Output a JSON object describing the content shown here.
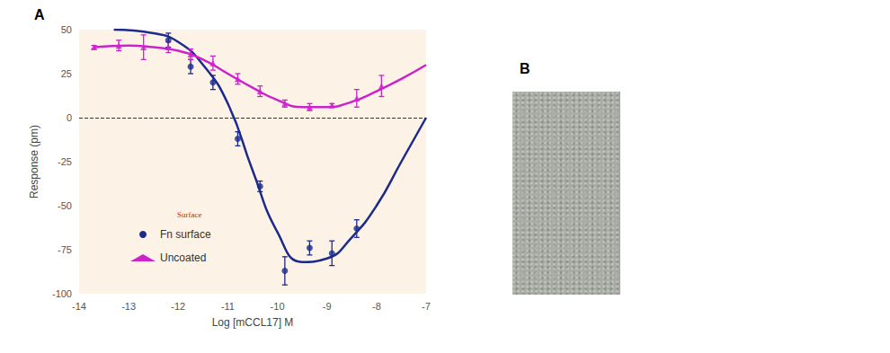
{
  "panel_labels": [
    "A",
    "B"
  ],
  "chart_data": {
    "type": "line",
    "x_label": "Log [mCCL17] M",
    "y_label": "Response (pm)",
    "xlim": [
      -14,
      -7
    ],
    "xticks": [
      -14,
      -13,
      -12,
      -11,
      -10,
      -9,
      -8,
      -7
    ],
    "ylim": [
      -100,
      50
    ],
    "yticks": [
      -100,
      -75,
      -50,
      -25,
      0,
      25,
      50
    ],
    "grid": false,
    "legend": "lower left",
    "hline": 0,
    "annotations": [
      "Surface"
    ],
    "series": [
      {
        "name": "Fn surface",
        "color": "#1c2a8c",
        "marker": "circle",
        "x": [
          -12.2,
          -11.75,
          -11.3,
          -10.8,
          -10.35,
          -9.85,
          -9.35,
          -8.9,
          -8.4
        ],
        "values": [
          44,
          29,
          20,
          -12,
          -39,
          -87,
          -74,
          -77,
          -63
        ],
        "errors": [
          4,
          4,
          4,
          4,
          3,
          8,
          4,
          7,
          5
        ],
        "curve": {
          "x": [
            -13.3,
            -12.5,
            -12,
            -11.5,
            -11,
            -10.5,
            -10,
            -9.5,
            -9,
            -8.5,
            -8,
            -7.5,
            -7
          ],
          "values": [
            50,
            48,
            43,
            30,
            8,
            -30,
            -65,
            -82,
            -80,
            -68,
            -50,
            -25,
            0
          ]
        }
      },
      {
        "name": "Uncoated",
        "color": "#cc22cc",
        "marker": "triangle",
        "x": [
          -13.7,
          -13.2,
          -12.7,
          -12.2,
          -11.75,
          -11.3,
          -10.8,
          -10.35,
          -9.85,
          -9.35,
          -8.9,
          -8.4,
          -7.9
        ],
        "values": [
          40,
          41,
          40,
          40,
          36,
          31,
          22,
          15,
          8,
          6,
          7,
          11,
          18
        ],
        "errors": [
          1,
          3,
          7,
          3,
          3,
          4,
          3,
          3,
          2,
          2,
          1,
          5,
          6
        ],
        "curve": {
          "x": [
            -13.7,
            -13,
            -12.5,
            -12,
            -11.5,
            -11,
            -10.5,
            -10,
            -9.5,
            -9,
            -8.5,
            -8,
            -7.5,
            -7
          ],
          "values": [
            40,
            41,
            40,
            38,
            33,
            25,
            17,
            10,
            6,
            6,
            9,
            15,
            22,
            30
          ]
        }
      }
    ]
  }
}
